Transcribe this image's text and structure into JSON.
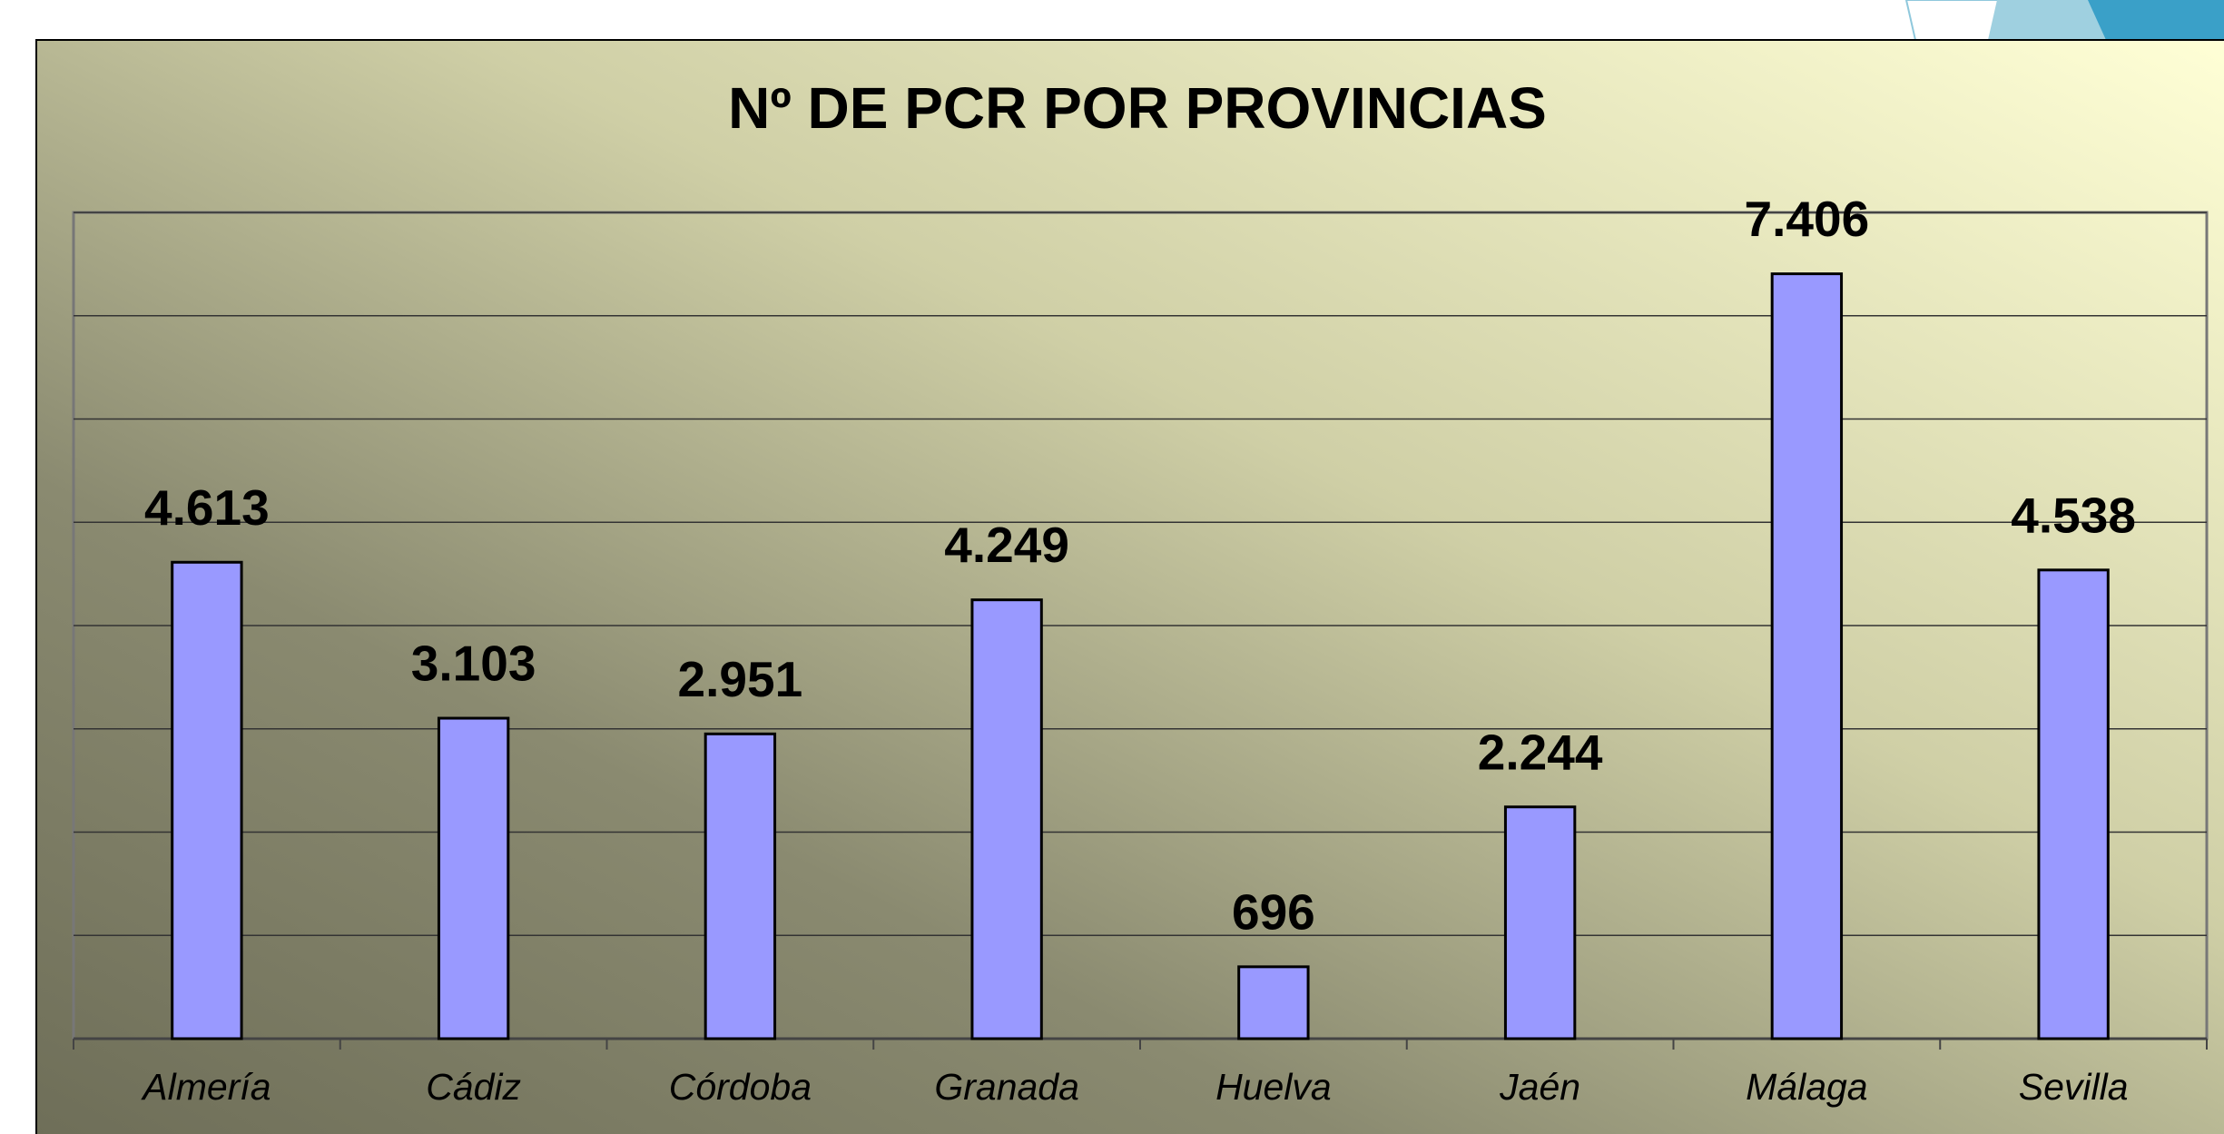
{
  "chart_data": {
    "type": "bar",
    "title": "Nº DE PCR POR PROVINCIAS",
    "categories": [
      "Almería",
      "Cádiz",
      "Córdoba",
      "Granada",
      "Huelva",
      "Jaén",
      "Málaga",
      "Sevilla"
    ],
    "values": [
      4613,
      3103,
      2951,
      4249,
      696,
      2244,
      7406,
      4538
    ],
    "value_labels": [
      "4.613",
      "3.103",
      "2.951",
      "4.249",
      "696",
      "2.244",
      "7.406",
      "4.538"
    ],
    "color": "#9999ff",
    "ylim": [
      0,
      8000
    ],
    "yticks": [
      0,
      1000,
      2000,
      3000,
      4000,
      5000,
      6000,
      7000,
      8000
    ],
    "grid": true
  }
}
